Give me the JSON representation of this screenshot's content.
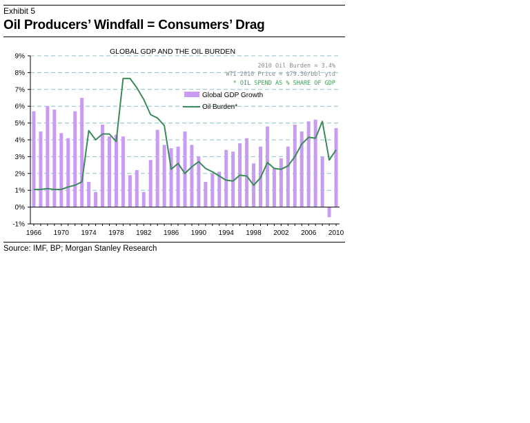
{
  "exhibit_label": "Exhibit 5",
  "title": "Oil Producers’ Windfall = Consumers’ Drag",
  "source": "Source: IMF, BP; Morgan Stanley Research",
  "colors": {
    "bar": "#c89cf0",
    "line": "#3a8a5a",
    "grid": "#8cc0cc",
    "note_green": "#3a9a5a"
  },
  "chart_data": {
    "type": "bar",
    "title": "GLOBAL GDP AND THE OIL BURDEN",
    "annotations": [
      "2010 Oil Burden = 3.4%",
      "WTI 2010 Price = $79.36/bbl ytd",
      "* OIL SPEND AS % SHARE OF GDP"
    ],
    "x": [
      1966,
      1967,
      1968,
      1969,
      1970,
      1971,
      1972,
      1973,
      1974,
      1975,
      1976,
      1977,
      1978,
      1979,
      1980,
      1981,
      1982,
      1983,
      1984,
      1985,
      1986,
      1987,
      1988,
      1989,
      1990,
      1991,
      1992,
      1993,
      1994,
      1995,
      1996,
      1997,
      1998,
      1999,
      2000,
      2001,
      2002,
      2003,
      2004,
      2005,
      2006,
      2007,
      2008,
      2009,
      2010
    ],
    "x_tick_labels": [
      "1966",
      "1970",
      "1974",
      "1978",
      "1982",
      "1986",
      "1990",
      "1994",
      "1998",
      "2002",
      "2006",
      "2010"
    ],
    "y_tick_labels": [
      "-1%",
      "0%",
      "1%",
      "2%",
      "3%",
      "4%",
      "5%",
      "6%",
      "7%",
      "8%",
      "9%"
    ],
    "ylim": [
      -1,
      9
    ],
    "grid": true,
    "legend_position": "upper-middle",
    "series": [
      {
        "name": "Global GDP Growth",
        "type": "bar",
        "values": [
          5.7,
          4.5,
          6.0,
          5.8,
          4.4,
          4.1,
          5.7,
          6.5,
          1.5,
          0.9,
          4.9,
          4.2,
          4.3,
          4.2,
          1.9,
          2.2,
          0.9,
          2.8,
          4.6,
          3.7,
          3.5,
          3.6,
          4.5,
          3.7,
          3.0,
          1.5,
          2.0,
          2.1,
          3.4,
          3.3,
          3.8,
          4.1,
          2.6,
          3.6,
          4.8,
          2.3,
          2.9,
          3.6,
          4.9,
          4.5,
          5.1,
          5.2,
          3.0,
          -0.6,
          4.7
        ]
      },
      {
        "name": "Oil Burden*",
        "type": "line",
        "values": [
          1.05,
          1.05,
          1.1,
          1.05,
          1.05,
          1.2,
          1.3,
          1.5,
          4.55,
          4.0,
          4.35,
          4.35,
          3.9,
          7.65,
          7.65,
          7.1,
          6.4,
          5.5,
          5.3,
          4.85,
          2.25,
          2.6,
          2.0,
          2.4,
          2.7,
          2.3,
          2.1,
          1.85,
          1.6,
          1.55,
          1.9,
          1.85,
          1.3,
          1.75,
          2.65,
          2.3,
          2.25,
          2.45,
          3.0,
          3.75,
          4.15,
          4.1,
          5.1,
          2.8,
          3.4
        ]
      }
    ]
  }
}
